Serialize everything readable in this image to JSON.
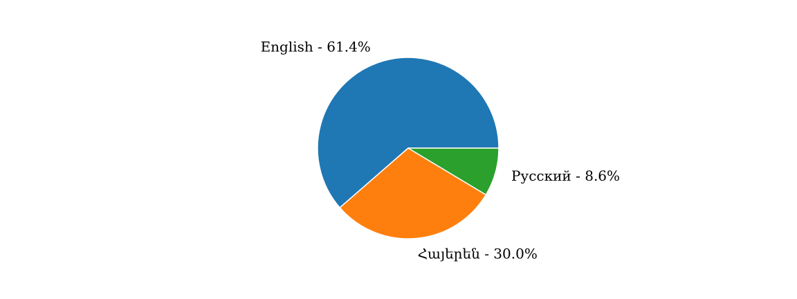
{
  "chart_data": {
    "type": "pie",
    "title": "",
    "slices": [
      {
        "label": "English  -  61.4%",
        "value": 61.4,
        "color": "#1f77b4"
      },
      {
        "label": "Հայերեն  -  30.0%",
        "value": 30.0,
        "color": "#ff7f0e"
      },
      {
        "label": "Русский  -  8.6%",
        "value": 8.6,
        "color": "#2ca02c"
      }
    ],
    "start_angle_deg": 0,
    "direction": "counterclockwise",
    "wedge_edge_color": "#ffffff",
    "legend": "none"
  }
}
